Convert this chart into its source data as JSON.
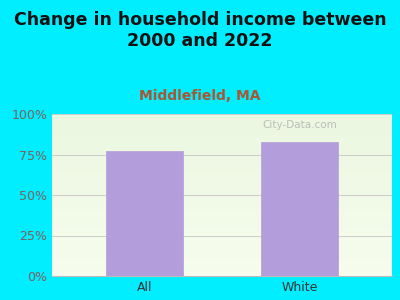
{
  "title": "Change in household income between\n2000 and 2022",
  "subtitle": "Middlefield, MA",
  "categories": [
    "All",
    "White"
  ],
  "values": [
    77,
    83
  ],
  "bar_color": "#b39ddb",
  "bar_edge_color": "#b39ddb",
  "bg_color": "#00eeff",
  "yticks": [
    0,
    25,
    50,
    75,
    100
  ],
  "ytick_labels": [
    "0%",
    "25%",
    "50%",
    "75%",
    "100%"
  ],
  "ylabel_color": "#7a6060",
  "title_color": "#111111",
  "subtitle_color": "#aa5533",
  "title_fontsize": 12.5,
  "subtitle_fontsize": 10,
  "tick_label_fontsize": 9,
  "xtick_color": "#333333",
  "watermark": "City-Data.com"
}
